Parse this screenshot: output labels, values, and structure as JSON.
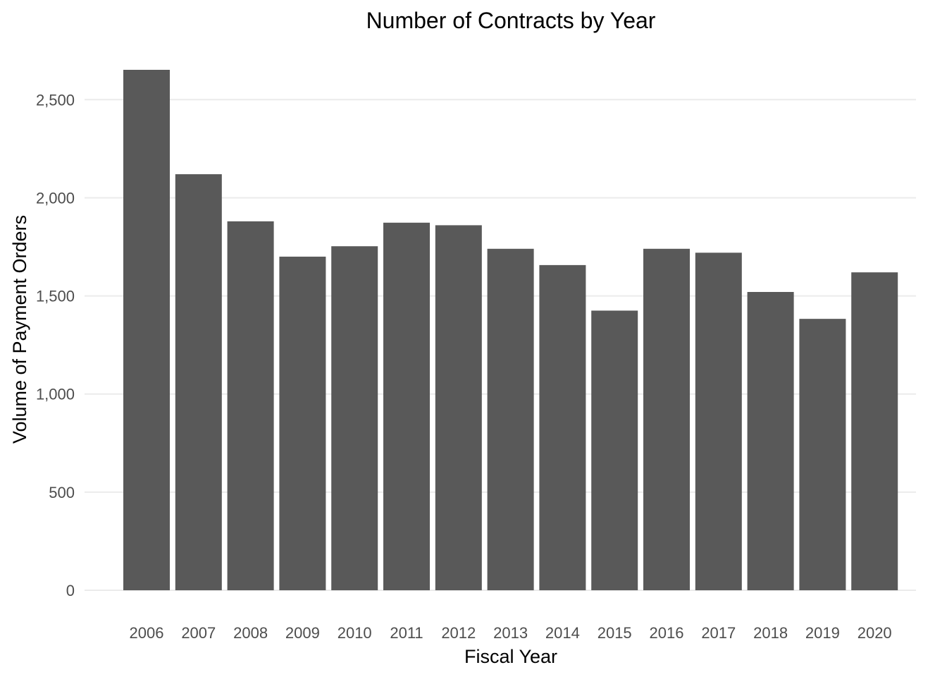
{
  "chart_data": {
    "type": "bar",
    "title": "Number of Contracts by Year",
    "xlabel": "Fiscal Year",
    "ylabel": "Volume of Payment Orders",
    "categories": [
      "2006",
      "2007",
      "2008",
      "2009",
      "2010",
      "2011",
      "2012",
      "2013",
      "2014",
      "2015",
      "2016",
      "2017",
      "2018",
      "2019",
      "2020"
    ],
    "values": [
      2652,
      2120,
      1880,
      1700,
      1753,
      1873,
      1860,
      1740,
      1657,
      1425,
      1740,
      1720,
      1520,
      1383,
      1620
    ],
    "ylim": [
      0,
      2652
    ],
    "yticks": [
      0,
      500,
      1000,
      1500,
      2000,
      2500
    ],
    "ytick_labels": [
      "0",
      "500",
      "1,000",
      "1,500",
      "2,000",
      "2,500"
    ],
    "grid": "horizontal",
    "legend": "none",
    "bar_color": "#595959",
    "grid_color": "#ebebeb"
  }
}
